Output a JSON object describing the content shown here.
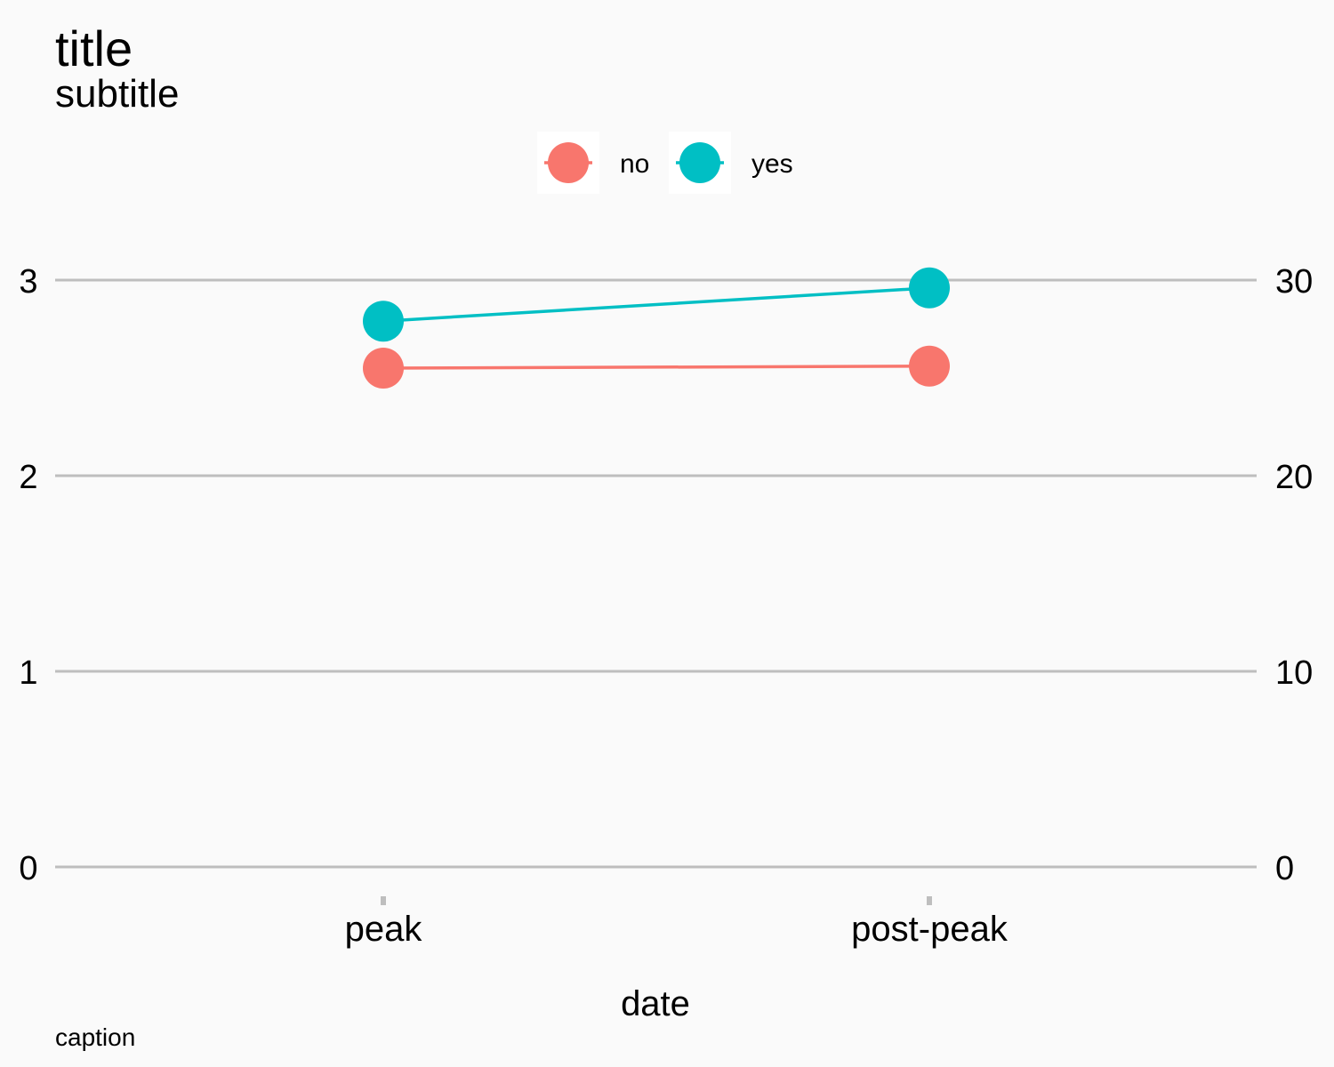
{
  "chart_data": {
    "type": "line",
    "title": "title",
    "subtitle": "subtitle",
    "caption": "caption",
    "xlabel": "date",
    "ylabel": "",
    "categories": [
      "peak",
      "post-peak"
    ],
    "ylim": [
      0,
      3
    ],
    "y_ticks": [
      "0",
      "1",
      "2",
      "3"
    ],
    "y2_ticks": [
      "0",
      "10",
      "20",
      "30"
    ],
    "legend_position": "top",
    "grid": "horizontal major",
    "series": [
      {
        "name": "no",
        "color": "#F8766D",
        "values": [
          2.55,
          2.56
        ]
      },
      {
        "name": "yes",
        "color": "#00BFC4",
        "values": [
          2.79,
          2.96
        ]
      }
    ]
  },
  "colors": {
    "background": "#fafafa",
    "gridline": "#bebebe"
  }
}
